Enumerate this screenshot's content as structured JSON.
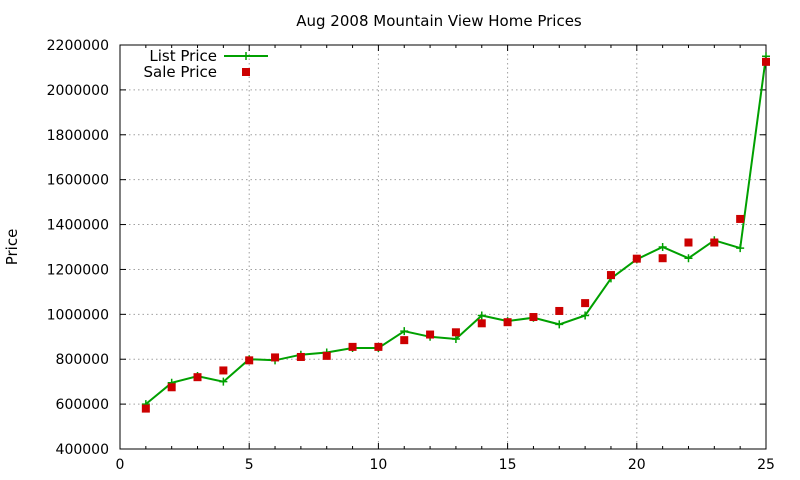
{
  "chart_data": {
    "type": "line",
    "title": "Aug 2008 Mountain View Home Prices",
    "xlabel": "",
    "ylabel": "Price",
    "xlim": [
      0,
      25
    ],
    "ylim": [
      400000,
      2200000
    ],
    "x_ticks": [
      "0",
      "5",
      "10",
      "15",
      "20",
      "25"
    ],
    "y_ticks": [
      "400000",
      "600000",
      "800000",
      "1000000",
      "1200000",
      "1400000",
      "1600000",
      "1800000",
      "2000000",
      "2200000"
    ],
    "grid": true,
    "legend_position": "top-left",
    "series": [
      {
        "name": "List Price",
        "style": "line-with-plus-markers",
        "color": "#00a000",
        "points": [
          [
            1,
            600000
          ],
          [
            2,
            695000
          ],
          [
            3,
            725000
          ],
          [
            4,
            700000
          ],
          [
            5,
            800000
          ],
          [
            6,
            795000
          ],
          [
            7,
            820000
          ],
          [
            8,
            830000
          ],
          [
            9,
            850000
          ],
          [
            10,
            850000
          ],
          [
            11,
            925000
          ],
          [
            12,
            900000
          ],
          [
            13,
            890000
          ],
          [
            14,
            995000
          ],
          [
            15,
            970000
          ],
          [
            16,
            985000
          ],
          [
            17,
            955000
          ],
          [
            18,
            995000
          ],
          [
            19,
            1160000
          ],
          [
            20,
            1245000
          ],
          [
            21,
            1300000
          ],
          [
            22,
            1250000
          ],
          [
            23,
            1330000
          ],
          [
            24,
            1295000
          ],
          [
            25,
            2150000
          ]
        ]
      },
      {
        "name": "Sale Price",
        "style": "square-markers",
        "color": "#cc0000",
        "points": [
          [
            1,
            580000
          ],
          [
            2,
            675000
          ],
          [
            3,
            720000
          ],
          [
            4,
            750000
          ],
          [
            5,
            795000
          ],
          [
            6,
            808000
          ],
          [
            7,
            810000
          ],
          [
            8,
            815000
          ],
          [
            9,
            855000
          ],
          [
            10,
            855000
          ],
          [
            11,
            885000
          ],
          [
            12,
            910000
          ],
          [
            13,
            920000
          ],
          [
            14,
            960000
          ],
          [
            15,
            965000
          ],
          [
            16,
            988000
          ],
          [
            17,
            1015000
          ],
          [
            18,
            1050000
          ],
          [
            19,
            1175000
          ],
          [
            20,
            1248000
          ],
          [
            21,
            1250000
          ],
          [
            22,
            1320000
          ],
          [
            23,
            1320000
          ],
          [
            24,
            1425000
          ],
          [
            25,
            2125000
          ]
        ]
      }
    ]
  }
}
